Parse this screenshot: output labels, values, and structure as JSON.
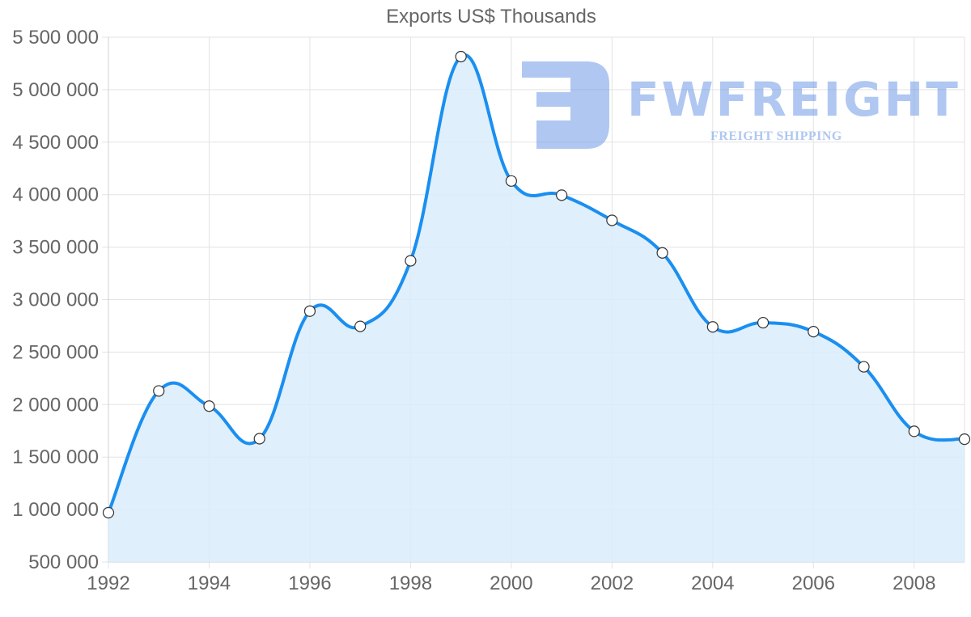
{
  "chart_data": {
    "type": "area",
    "title": "Exports US$ Thousands",
    "xlabel": "",
    "ylabel": "",
    "x": [
      1992,
      1993,
      1994,
      1995,
      1996,
      1997,
      1998,
      1999,
      2000,
      2001,
      2002,
      2003,
      2004,
      2005,
      2006,
      2007,
      2008,
      2009
    ],
    "series": [
      {
        "name": "Exports US$ Thousands",
        "values": [
          970000,
          2130000,
          1985000,
          1675000,
          2890000,
          2745000,
          3370000,
          5315000,
          4130000,
          3995000,
          3755000,
          3445000,
          2740000,
          2780000,
          2695000,
          2360000,
          1745000,
          1670000
        ],
        "line_color": "#1a8ff0",
        "fill_color": "#d9ecfc"
      }
    ],
    "ylim": [
      500000,
      5500000
    ],
    "y_ticks": [
      "5 500 000",
      "5 000 000",
      "4 500 000",
      "4 000 000",
      "3 500 000",
      "3 000 000",
      "2 500 000",
      "2 000 000",
      "1 500 000",
      "1 000 000",
      "500 000"
    ],
    "y_tick_values": [
      5500000,
      5000000,
      4500000,
      4000000,
      3500000,
      3000000,
      2500000,
      2000000,
      1500000,
      1000000,
      500000
    ],
    "x_ticks": [
      "1992",
      "1994",
      "1996",
      "1998",
      "2000",
      "2002",
      "2004",
      "2006",
      "2008"
    ],
    "x_tick_values": [
      1992,
      1994,
      1996,
      1998,
      2000,
      2002,
      2004,
      2006,
      2008
    ],
    "grid": true,
    "legend": "none"
  },
  "watermark": {
    "brand": "FWFREIGHT",
    "tagline": "FREIGHT SHIPPING",
    "color": "#6f9be6"
  }
}
